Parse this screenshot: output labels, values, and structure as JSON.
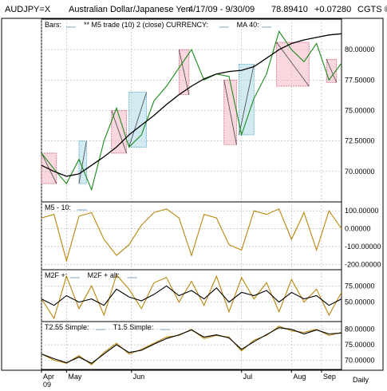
{
  "header": {
    "symbol": "AUDJPY=X",
    "name": "Australian Dollar/Japanese Yen",
    "range": "4/17/09 - 9/30/09",
    "last": "78.89410",
    "change": "+0.07280",
    "source": "CGTS ©"
  },
  "footer": {
    "frequency": "Daily"
  },
  "colors": {
    "close": "#1a8a1a",
    "ma": "#000000",
    "osc": "#b8860b",
    "up_box": "#add8e6",
    "down_box": "#f4b6c2",
    "grid": "#b0b0b0"
  },
  "chart_data": [
    {
      "type": "line",
      "panel": "price",
      "legend": [
        "Bars:",
        "** M5 trade (10) 2 (close) CURRENCY:",
        "MA 40:"
      ],
      "x": [
        0,
        5,
        10,
        15,
        20,
        25,
        30,
        35,
        40,
        45,
        50,
        55,
        60,
        65,
        70,
        75,
        80,
        85,
        90,
        95,
        100,
        105,
        110,
        115,
        120
      ],
      "series": [
        {
          "name": "close",
          "values": [
            71.5,
            70.2,
            69.0,
            71.0,
            68.5,
            72.5,
            75.2,
            72.0,
            73.0,
            75.8,
            77.0,
            78.5,
            80.0,
            77.5,
            78.0,
            77.8,
            73.0,
            76.0,
            78.0,
            81.5,
            80.0,
            79.0,
            80.5,
            77.5,
            78.9
          ]
        },
        {
          "name": "MA 40",
          "values": [
            70.5,
            70.0,
            69.6,
            69.8,
            70.5,
            71.2,
            72.0,
            73.0,
            73.8,
            74.6,
            75.5,
            76.3,
            77.0,
            77.6,
            78.0,
            78.2,
            78.3,
            78.6,
            79.3,
            80.0,
            80.5,
            80.8,
            81.0,
            81.2,
            81.3
          ]
        }
      ],
      "boxes": [
        {
          "x0": 0,
          "x1": 6,
          "y0": 69.0,
          "y1": 71.5,
          "dir": "down"
        },
        {
          "x0": 15,
          "x1": 18,
          "y0": 69.0,
          "y1": 72.5,
          "dir": "up"
        },
        {
          "x0": 28,
          "x1": 34,
          "y0": 71.5,
          "y1": 75.0,
          "dir": "down"
        },
        {
          "x0": 35,
          "x1": 42,
          "y0": 72.0,
          "y1": 76.5,
          "dir": "up"
        },
        {
          "x0": 55,
          "x1": 59,
          "y0": 76.3,
          "y1": 80.0,
          "dir": "down"
        },
        {
          "x0": 73,
          "x1": 78,
          "y0": 72.2,
          "y1": 77.5,
          "dir": "down"
        },
        {
          "x0": 79,
          "x1": 85,
          "y0": 73.0,
          "y1": 78.8,
          "dir": "up"
        },
        {
          "x0": 94,
          "x1": 107,
          "y0": 77.0,
          "y1": 80.6,
          "dir": "down"
        },
        {
          "x0": 114,
          "x1": 118,
          "y0": 77.3,
          "y1": 79.2,
          "dir": "down"
        }
      ],
      "ylim": [
        67.5,
        82.5
      ],
      "yticks": [
        "70.00000",
        "72.50000",
        "75.00000",
        "77.50000",
        "80.00000"
      ]
    },
    {
      "type": "line",
      "panel": "m5",
      "legend": [
        "M5 - 10:"
      ],
      "x": [
        0,
        5,
        10,
        15,
        20,
        25,
        30,
        35,
        40,
        45,
        50,
        55,
        60,
        65,
        70,
        75,
        80,
        85,
        90,
        95,
        100,
        105,
        110,
        115,
        120
      ],
      "series": [
        {
          "name": "M5 - 10",
          "values": [
            60,
            80,
            -180,
            70,
            90,
            -60,
            -150,
            -90,
            20,
            90,
            110,
            60,
            -150,
            80,
            60,
            -90,
            -120,
            100,
            80,
            110,
            -60,
            90,
            -120,
            100,
            0
          ]
        }
      ],
      "ylim": [
        -230,
        150
      ],
      "yticks": [
        "-200.00000",
        "-100.00000",
        "0.00000",
        "100.00000"
      ]
    },
    {
      "type": "line",
      "panel": "m2f",
      "legend": [
        "M2F +:",
        "M2F + alt:"
      ],
      "x": [
        0,
        5,
        10,
        15,
        20,
        25,
        30,
        35,
        40,
        45,
        50,
        55,
        60,
        65,
        70,
        75,
        80,
        85,
        90,
        95,
        100,
        105,
        110,
        115,
        120
      ],
      "series": [
        {
          "name": "M2F +",
          "values": [
            55,
            25,
            90,
            40,
            75,
            30,
            92,
            70,
            40,
            80,
            88,
            50,
            82,
            45,
            90,
            35,
            88,
            55,
            80,
            35,
            85,
            50,
            70,
            30,
            65
          ]
        },
        {
          "name": "M2F + alt",
          "values": [
            55,
            45,
            60,
            50,
            55,
            45,
            70,
            58,
            52,
            62,
            75,
            60,
            68,
            55,
            72,
            50,
            65,
            60,
            68,
            50,
            65,
            55,
            60,
            45,
            55
          ]
        }
      ],
      "ylim": [
        20,
        100
      ],
      "yticks": [
        "50.00000",
        "75.00000"
      ]
    },
    {
      "type": "line",
      "panel": "simple",
      "legend": [
        "T2.55 Simple:",
        "T1.5 Simple:"
      ],
      "x": [
        0,
        5,
        10,
        15,
        20,
        25,
        30,
        35,
        40,
        45,
        50,
        55,
        60,
        65,
        70,
        75,
        80,
        85,
        90,
        95,
        100,
        105,
        110,
        115,
        120
      ],
      "series": [
        {
          "name": "T2.55 Simple",
          "values": [
            72.0,
            70.0,
            69.0,
            71.5,
            68.5,
            72.5,
            75.5,
            72.0,
            73.5,
            75.5,
            77.5,
            78.0,
            80.0,
            77.0,
            78.0,
            77.5,
            73.0,
            76.5,
            78.0,
            81.0,
            79.5,
            79.0,
            80.0,
            78.0,
            79.0
          ]
        },
        {
          "name": "T1.5 Simple",
          "values": [
            72.0,
            70.5,
            69.2,
            71.0,
            69.0,
            72.0,
            75.0,
            72.5,
            73.2,
            75.2,
            77.0,
            78.2,
            79.8,
            77.5,
            78.2,
            77.2,
            73.5,
            76.0,
            78.3,
            80.5,
            80.0,
            78.5,
            79.8,
            78.5,
            78.8
          ]
        }
      ],
      "ylim": [
        67.0,
        82.5
      ],
      "yticks": [
        "70.00000",
        "75.00000",
        "80.00000"
      ]
    }
  ],
  "xaxis": {
    "ticks": [
      {
        "x": 0,
        "label": "Apr"
      },
      {
        "x": 10,
        "label": "May"
      },
      {
        "x": 36,
        "label": "Jun"
      },
      {
        "x": 80,
        "label": "Jul"
      },
      {
        "x": 100,
        "label": "Aug"
      },
      {
        "x": 112,
        "label": "Sep"
      }
    ],
    "year": "09"
  }
}
